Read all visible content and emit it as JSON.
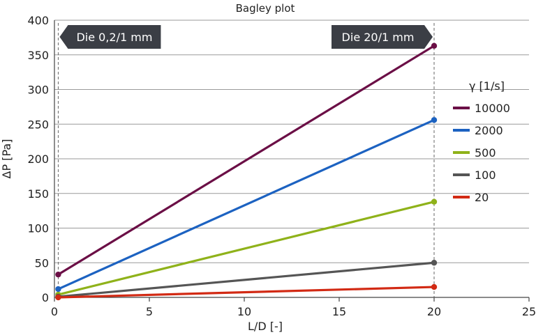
{
  "chart_data": {
    "type": "line",
    "title": "Bagley plot",
    "xlabel": "L/D [-]",
    "ylabel": "ΔP [Pa]",
    "xlim": [
      0,
      25
    ],
    "ylim": [
      0,
      400
    ],
    "xticks": [
      0,
      5,
      10,
      15,
      20,
      25
    ],
    "yticks": [
      0,
      50,
      100,
      150,
      200,
      250,
      300,
      350,
      400
    ],
    "grid": "horizontal",
    "x": [
      0.2,
      20
    ],
    "legend_title": "γ [1/s]",
    "legend_position": "right",
    "series": [
      {
        "name": "10000",
        "values": [
          33,
          363
        ],
        "color": "#6b0f46"
      },
      {
        "name": "2000",
        "values": [
          12,
          256
        ],
        "color": "#1c62c1"
      },
      {
        "name": "500",
        "values": [
          4,
          138
        ],
        "color": "#8fb21a"
      },
      {
        "name": "100",
        "values": [
          1,
          50
        ],
        "color": "#555555"
      },
      {
        "name": "20",
        "values": [
          0,
          15
        ],
        "color": "#d22a14"
      }
    ],
    "annotations": [
      {
        "label": "Die 0,2/1 mm",
        "x": 0.2,
        "pointer": "left"
      },
      {
        "label": "Die 20/1 mm",
        "x": 20,
        "pointer": "right"
      }
    ]
  }
}
